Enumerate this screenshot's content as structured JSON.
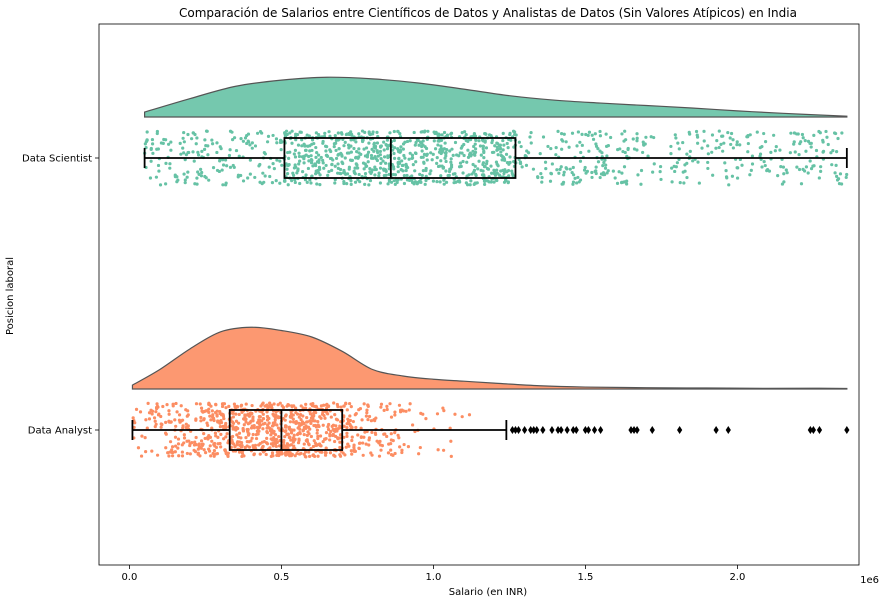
{
  "chart_data": {
    "type": "raincloud",
    "title": "Comparación de Salarios entre Científicos de Datos y Analistas de Datos (Sin Valores Atípicos) en India",
    "xlabel": "Salario (en INR)",
    "ylabel": "Posicion laboral",
    "x_offset_label": "1e6",
    "xlim": [
      -0.1,
      2.4
    ],
    "x_ticks": [
      0.0,
      0.5,
      1.0,
      1.5,
      2.0
    ],
    "x_tick_labels": [
      "0.0",
      "0.5",
      "1.0",
      "1.5",
      "2.0"
    ],
    "grid": false,
    "series": [
      {
        "name": "Data Scientist",
        "color": "#66c2a5",
        "box": {
          "min": 0.05,
          "q1": 0.51,
          "median": 0.86,
          "q3": 1.27,
          "max": 2.36
        },
        "density_x": [
          0.05,
          0.2,
          0.35,
          0.5,
          0.65,
          0.8,
          0.95,
          1.1,
          1.25,
          1.4,
          1.55,
          1.7,
          1.85,
          2.0,
          2.15,
          2.36
        ],
        "density_y": [
          0.12,
          0.45,
          0.75,
          0.9,
          0.97,
          0.93,
          0.83,
          0.68,
          0.52,
          0.41,
          0.34,
          0.28,
          0.22,
          0.15,
          0.09,
          0.02
        ],
        "outliers": []
      },
      {
        "name": "Data Analyst",
        "color": "#fc8d62",
        "box": {
          "min": 0.01,
          "q1": 0.33,
          "median": 0.5,
          "q3": 0.7,
          "max": 1.24
        },
        "density_x": [
          0.01,
          0.1,
          0.2,
          0.3,
          0.4,
          0.5,
          0.6,
          0.7,
          0.8,
          0.9,
          1.0,
          1.1,
          1.2,
          1.35,
          1.5,
          1.7,
          1.9,
          2.1,
          2.25,
          2.36
        ],
        "density_y": [
          0.06,
          0.3,
          0.62,
          0.88,
          0.95,
          0.9,
          0.8,
          0.58,
          0.3,
          0.2,
          0.15,
          0.12,
          0.09,
          0.05,
          0.03,
          0.02,
          0.015,
          0.01,
          0.012,
          0.008
        ],
        "outliers": [
          1.26,
          1.27,
          1.28,
          1.3,
          1.32,
          1.33,
          1.34,
          1.36,
          1.39,
          1.41,
          1.42,
          1.44,
          1.46,
          1.47,
          1.5,
          1.51,
          1.53,
          1.55,
          1.65,
          1.66,
          1.67,
          1.72,
          1.81,
          1.93,
          1.97,
          2.24,
          2.25,
          2.27,
          2.36
        ]
      }
    ]
  }
}
